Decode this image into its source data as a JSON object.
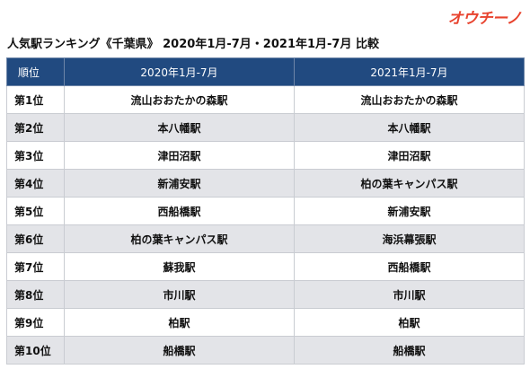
{
  "logo": {
    "text": "オウチーノ"
  },
  "title": "人気駅ランキング《千葉県》 2020年1月-7月・2021年1月-7月 比較",
  "table": {
    "headers": [
      "順位",
      "2020年1月-7月",
      "2021年1月-7月"
    ],
    "rows": [
      {
        "rank": "第1位",
        "y2020": "流山おおたかの森駅",
        "y2021": "流山おおたかの森駅"
      },
      {
        "rank": "第2位",
        "y2020": "本八幡駅",
        "y2021": "本八幡駅"
      },
      {
        "rank": "第3位",
        "y2020": "津田沼駅",
        "y2021": "津田沼駅"
      },
      {
        "rank": "第4位",
        "y2020": "新浦安駅",
        "y2021": "柏の葉キャンパス駅"
      },
      {
        "rank": "第5位",
        "y2020": "西船橋駅",
        "y2021": "新浦安駅"
      },
      {
        "rank": "第6位",
        "y2020": "柏の葉キャンパス駅",
        "y2021": "海浜幕張駅"
      },
      {
        "rank": "第7位",
        "y2020": "蘇我駅",
        "y2021": "西船橋駅"
      },
      {
        "rank": "第8位",
        "y2020": "市川駅",
        "y2021": "市川駅"
      },
      {
        "rank": "第9位",
        "y2020": "柏駅",
        "y2021": "柏駅"
      },
      {
        "rank": "第10位",
        "y2020": "船橋駅",
        "y2021": "船橋駅"
      }
    ]
  },
  "colors": {
    "header_background": "#214a80",
    "header_text": "#ffffff",
    "alternate_row_background": "#e3e4e8",
    "logo": "#e8432e"
  }
}
